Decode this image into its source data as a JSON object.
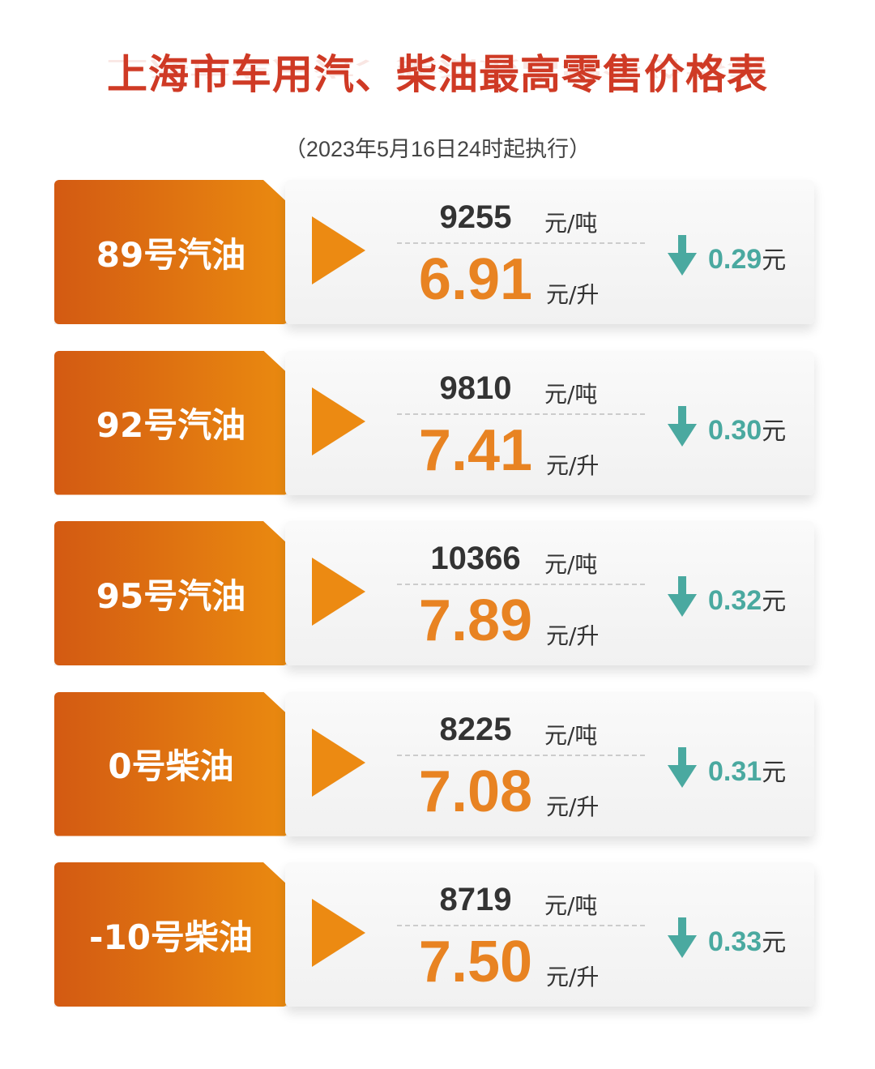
{
  "title": "上海市车用汽、柴油最高零售价格表",
  "subtitle": "（2023年5月16日24时起执行）",
  "colors": {
    "label_bg": "#e07214",
    "price": "#e88322",
    "change": "#4aa9a0",
    "title": "#cf3a25"
  },
  "units": {
    "per_ton": "元/吨",
    "per_liter": "元/升",
    "yuan": "元"
  },
  "rows": [
    {
      "label": "89号汽油",
      "price_ton": "9255",
      "price_liter": "6.91",
      "change_icon": "arrow-down-icon",
      "change": "0.29"
    },
    {
      "label": "92号汽油",
      "price_ton": "9810",
      "price_liter": "7.41",
      "change_icon": "arrow-down-icon",
      "change": "0.30"
    },
    {
      "label": "95号汽油",
      "price_ton": "10366",
      "price_liter": "7.89",
      "change_icon": "arrow-down-icon",
      "change": "0.32"
    },
    {
      "label": "0号柴油",
      "price_ton": "8225",
      "price_liter": "7.08",
      "change_icon": "arrow-down-icon",
      "change": "0.31"
    },
    {
      "label": "-10号柴油",
      "price_ton": "8719",
      "price_liter": "7.50",
      "change_icon": "arrow-down-icon",
      "change": "0.33"
    }
  ]
}
